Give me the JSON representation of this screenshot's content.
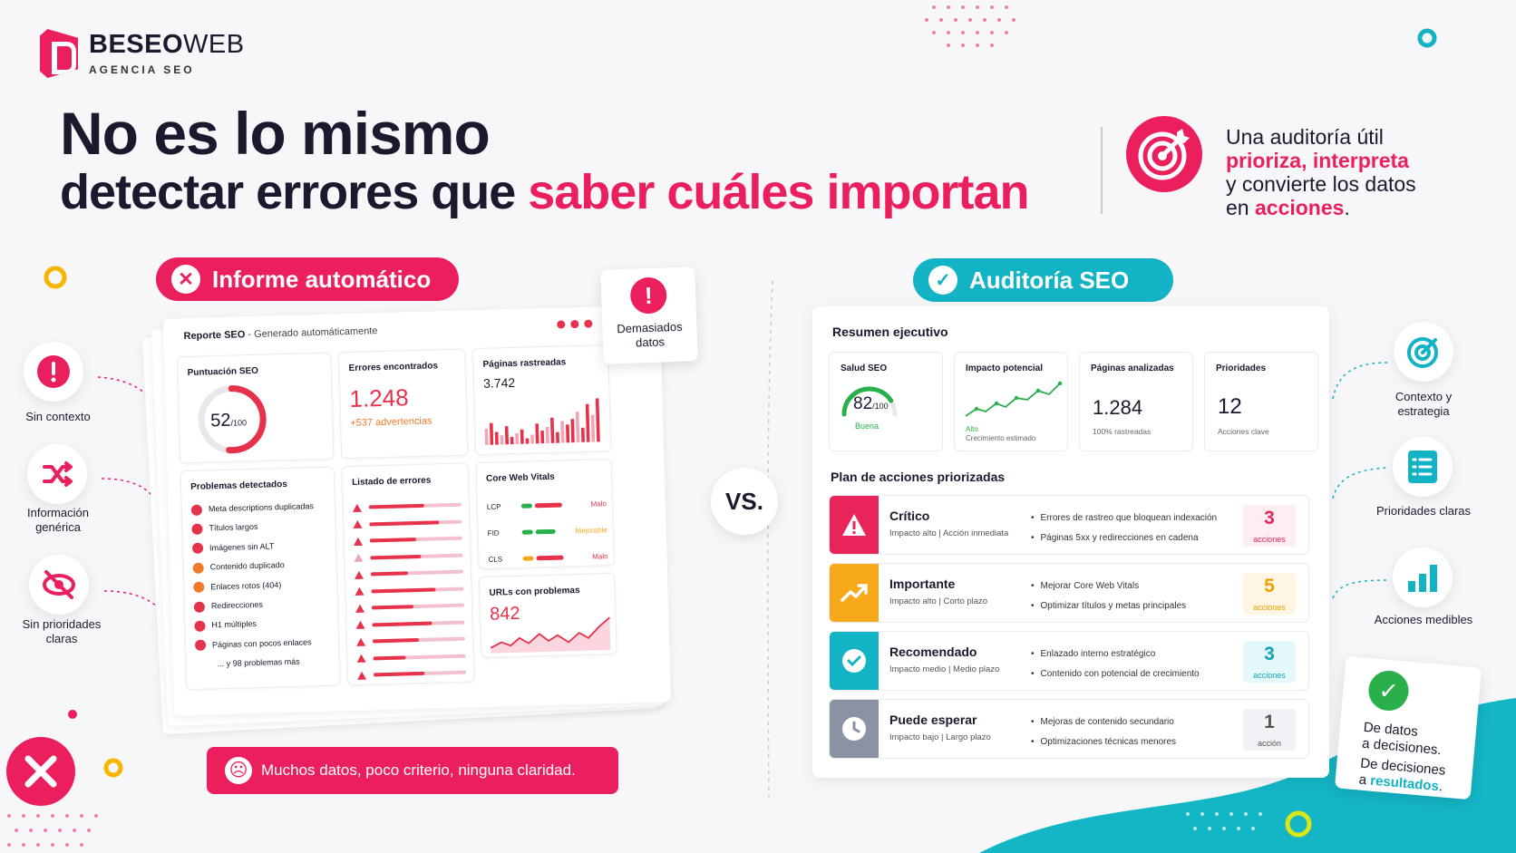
{
  "logo": {
    "name_bold": "BESEO",
    "name_light": "WEB",
    "sub": "AGENCIA SEO"
  },
  "headline": {
    "line1": "No es lo mismo",
    "line2_a": "detectar errores que ",
    "line2_b": "saber cuáles importan"
  },
  "tagline": {
    "l1": "Una auditoría útil",
    "l2_a": "prioriza, interpreta",
    "l3": "y convierte los datos",
    "l4_a": "en ",
    "l4_b": "acciones",
    "l4_c": "."
  },
  "left_pill": "Informe automático",
  "right_pill": "Auditoría SEO",
  "left_side": [
    {
      "label": "Sin contexto",
      "icon": "exclamation-icon"
    },
    {
      "label": "Información genérica",
      "icon": "shuffle-icon"
    },
    {
      "label": "Sin prioridades claras",
      "icon": "eye-off-icon"
    }
  ],
  "report": {
    "title": "Reporte SEO",
    "title_sub": " - Generado automáticamente",
    "score_label": "Puntuación SEO",
    "score": "52",
    "score_max": "/100",
    "score_fraction": 0.52,
    "errors_label": "Errores encontrados",
    "errors_value": "1.248",
    "errors_sub": "+537 advertencias",
    "pages_label": "Páginas rastreadas",
    "pages_value": "3.742",
    "problems_label": "Problemas detectados",
    "problems": [
      "Meta descriptions duplicadas",
      "Títulos largos",
      "Imágenes sin ALT",
      "Contenido duplicado",
      "Enlaces rotos (404)",
      "Redirecciones",
      "H1 múltiples",
      "Páginas con pocos enlaces"
    ],
    "problems_more": "... y 98 problemas más",
    "errors_list_label": "Listado de errores",
    "cwv_label": "Core Web Vitals",
    "cwv": [
      {
        "k": "LCP",
        "v": "Malo"
      },
      {
        "k": "FID",
        "v": "Mejorable"
      },
      {
        "k": "CLS",
        "v": "Malo"
      }
    ],
    "urls_label": "URLs con problemas",
    "urls_value": "842"
  },
  "warn": {
    "l1": "Demasiados",
    "l2": "datos"
  },
  "bad_pill": "Muchos datos, poco criterio, ninguna claridad.",
  "vs": "VS.",
  "audit": {
    "summary_title": "Resumen ejecutivo",
    "health_label": "Salud SEO",
    "health_value": "82",
    "health_max": "/100",
    "health_status": "Buena",
    "health_fraction": 0.82,
    "impact_label": "Impacto potencial",
    "impact_a": "Alto",
    "impact_b": "Crecimiento estimado",
    "pages_label": "Páginas analizadas",
    "pages_value": "1.284",
    "pages_sub": "100% rastreadas",
    "prio_label": "Prioridades",
    "prio_value": "12",
    "prio_sub": "Acciones clave",
    "plan_title": "Plan de acciones priorizadas",
    "rows": [
      {
        "name": "Crítico",
        "sub": "Impacto alto | Acción inmediata",
        "b1": "Errores de rastreo que bloquean indexación",
        "b2": "Páginas 5xx y redirecciones en cadena",
        "count": "3",
        "unit": "acciones",
        "color": "#e8245a",
        "icon": "warning-icon"
      },
      {
        "name": "Importante",
        "sub": "Impacto alto | Corto plazo",
        "b1": "Mejorar Core Web Vitals",
        "b2": "Optimizar títulos y metas principales",
        "count": "5",
        "unit": "acciones",
        "color": "#f7a81b",
        "icon": "trending-up-icon"
      },
      {
        "name": "Recomendado",
        "sub": "Impacto medio | Medio plazo",
        "b1": "Enlazado interno estratégico",
        "b2": "Contenido con potencial de crecimiento",
        "count": "3",
        "unit": "acciones",
        "color": "#12b3c4",
        "icon": "check-circle-icon"
      },
      {
        "name": "Puede esperar",
        "sub": "Impacto bajo | Largo plazo",
        "b1": "Mejoras de contenido secundario",
        "b2": "Optimizaciones técnicas menores",
        "count": "1",
        "unit": "acción",
        "color": "#8a93a3",
        "icon": "clock-icon"
      }
    ]
  },
  "right_side": [
    {
      "label": "Contexto y estrategia",
      "icon": "target-icon"
    },
    {
      "label": "Prioridades claras",
      "icon": "checklist-icon"
    },
    {
      "label": "Acciones medibles",
      "icon": "bar-chart-icon"
    }
  ],
  "note": {
    "l1": "De datos",
    "l2": "a decisiones.",
    "l3": "De decisiones",
    "l4_a": "a ",
    "l4_b": "resultados",
    "l4_c": "."
  }
}
